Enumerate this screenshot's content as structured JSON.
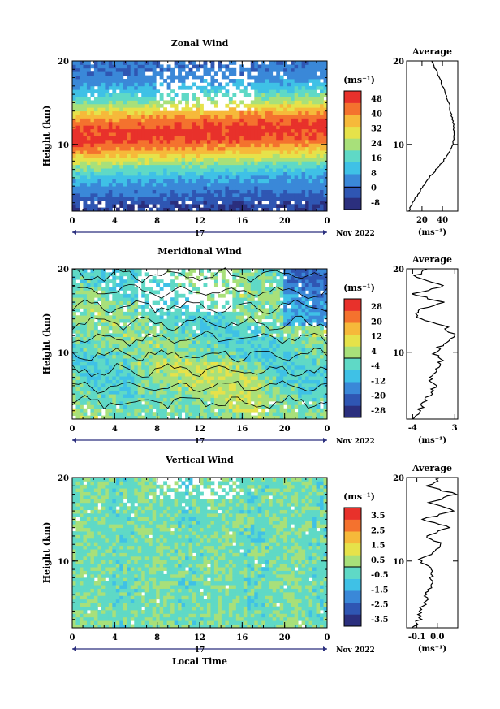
{
  "colors": {
    "frame": "#000000",
    "colormap": [
      "#2b2f7e",
      "#2f56b3",
      "#3a88d8",
      "#3fc1e6",
      "#5fd9c6",
      "#a8e07a",
      "#e6e24a",
      "#f6b93a",
      "#f4722e",
      "#e8312b"
    ]
  },
  "chart_data": [
    {
      "type": "heatmap",
      "title": "Zonal Wind",
      "ylabel": "Height (km)",
      "xlabel": "",
      "ylim": [
        2,
        20
      ],
      "yticks": [
        "10",
        "20"
      ],
      "xlim": [
        0,
        24
      ],
      "xticks": [
        "0",
        "4",
        "8",
        "12",
        "16",
        "20",
        "0"
      ],
      "day_label": "17",
      "date_label": "Nov 2022",
      "colorbar": {
        "unit": "(ms⁻¹)",
        "ticks": [
          "48",
          "40",
          "32",
          "24",
          "16",
          "8",
          "0",
          "-8"
        ],
        "range": [
          -12,
          52
        ]
      },
      "profile": {
        "title": "Average",
        "unit": "(ms⁻¹)",
        "xticks": [
          "20",
          "40"
        ],
        "xlim": [
          5,
          55
        ],
        "yticks": [
          "10",
          "20"
        ],
        "height_km": [
          2,
          3,
          4,
          5,
          6,
          7,
          8,
          9,
          10,
          11,
          12,
          13,
          14,
          15,
          16,
          17,
          18,
          19,
          20
        ],
        "values": [
          7,
          11,
          16,
          21,
          27,
          34,
          41,
          46,
          50,
          51,
          51,
          50,
          48,
          46,
          43,
          40,
          37,
          33,
          29
        ]
      }
    },
    {
      "type": "heatmap",
      "title": "Meridional Wind",
      "ylabel": "Height (km)",
      "xlabel": "",
      "ylim": [
        2,
        20
      ],
      "yticks": [
        "10",
        "20"
      ],
      "xlim": [
        0,
        24
      ],
      "xticks": [
        "0",
        "4",
        "8",
        "12",
        "16",
        "20",
        "0"
      ],
      "day_label": "17",
      "date_label": "Nov 2022",
      "colorbar": {
        "unit": "(ms⁻¹)",
        "ticks": [
          "28",
          "20",
          "12",
          "4",
          "-4",
          "-12",
          "-20",
          "-28"
        ],
        "range": [
          -32,
          32
        ]
      },
      "profile": {
        "title": "Average",
        "unit": "(ms⁻¹)",
        "xticks": [
          "-4",
          "3"
        ],
        "xlim": [
          -5,
          3.5
        ],
        "yticks": [
          "10",
          "20"
        ],
        "height_km": [
          2,
          3,
          4,
          5,
          6,
          7,
          8,
          9,
          10,
          11,
          12,
          13,
          14,
          15,
          16,
          17,
          18,
          19,
          20
        ],
        "values": [
          -3.5,
          -3,
          -2,
          -1.2,
          -0.3,
          -1.2,
          -0.2,
          0.8,
          -0.5,
          1.2,
          2.8,
          1.5,
          -2.8,
          -3.5,
          0.8,
          -3.8,
          1.5,
          -3.6,
          -2
        ]
      }
    },
    {
      "type": "heatmap",
      "title": "Vertical Wind",
      "ylabel": "Height (km)",
      "xlabel": "Local Time",
      "ylim": [
        2,
        20
      ],
      "yticks": [
        "10",
        "20"
      ],
      "xlim": [
        0,
        24
      ],
      "xticks": [
        "0",
        "4",
        "8",
        "12",
        "16",
        "20",
        "0"
      ],
      "day_label": "17",
      "date_label": "Nov 2022",
      "colorbar": {
        "unit": "(ms⁻¹)",
        "ticks": [
          "3.5",
          "2.5",
          "1.5",
          "0.5",
          "-0.5",
          "-1.5",
          "-2.5",
          "-3.5"
        ],
        "range": [
          -4,
          4
        ]
      },
      "profile": {
        "title": "Average",
        "unit": "(ms⁻¹)",
        "xticks": [
          "-0.1",
          "0.0"
        ],
        "xlim": [
          -0.15,
          0.1
        ],
        "yticks": [
          "10",
          "20"
        ],
        "height_km": [
          2,
          3,
          4,
          5,
          6,
          7,
          8,
          9,
          10,
          11,
          12,
          13,
          14,
          15,
          16,
          17,
          18,
          19,
          20
        ],
        "values": [
          -0.12,
          -0.09,
          -0.08,
          -0.06,
          -0.05,
          -0.04,
          -0.03,
          -0.02,
          -0.09,
          -0.02,
          0.03,
          -0.06,
          0.06,
          -0.07,
          0.08,
          -0.04,
          0.09,
          -0.05,
          0.02
        ]
      }
    }
  ]
}
